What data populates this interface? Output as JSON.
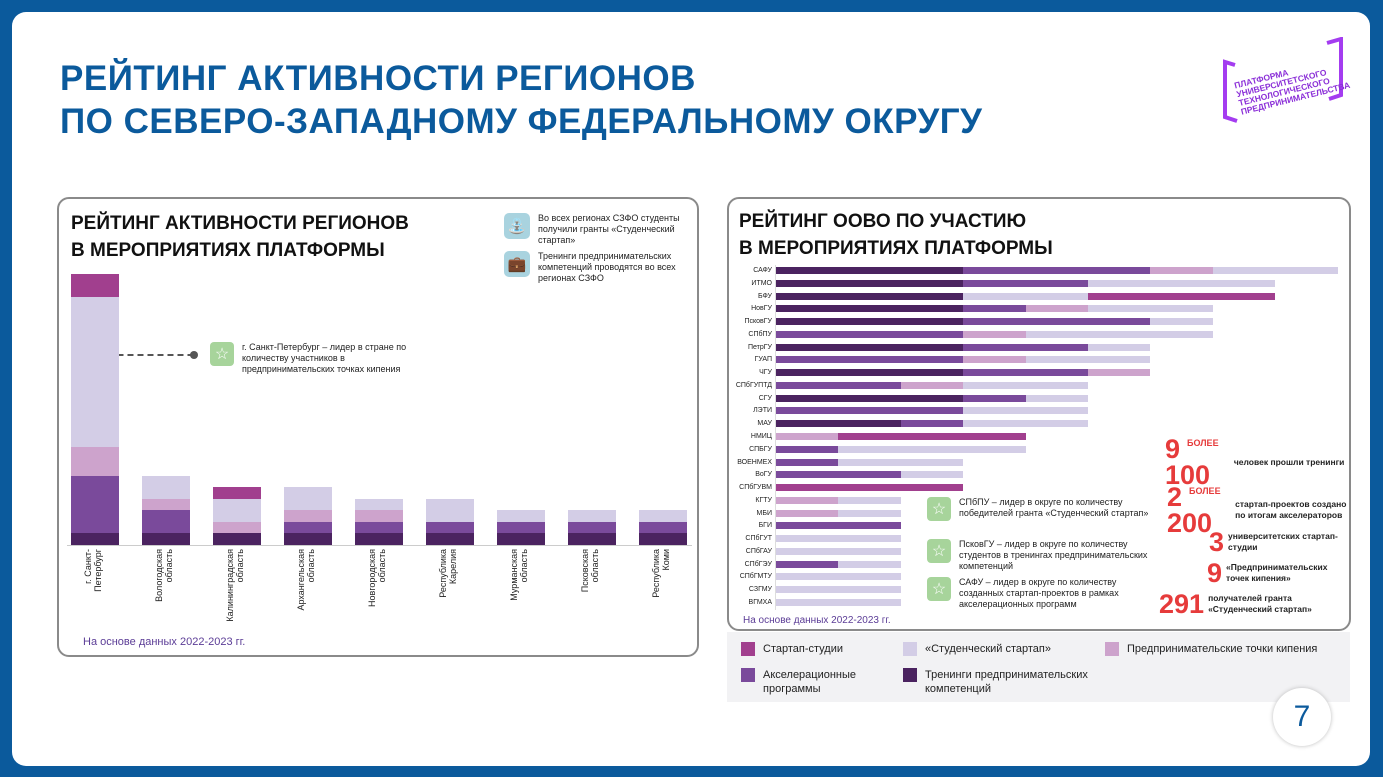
{
  "title": {
    "line1": "РЕЙТИНГ АКТИВНОСТИ РЕГИОНОВ",
    "line2": "ПО СЕВЕРО-ЗАПАДНОМУ ФЕДЕРАЛЬНОМУ ОКРУГУ"
  },
  "logo_text": "ПЛАТФОРМА УНИВЕРСИТЕТСКОГО ТЕХНОЛОГИЧЕСКОГО ПРЕДПРИНИМАТЕЛЬСТВА",
  "colors": {
    "studios": "#a13f8e",
    "startup": "#d3cde6",
    "points": "#cda3cc",
    "accel": "#7a4a9b",
    "trainings": "#4b2360"
  },
  "legend": [
    {
      "key": "studios",
      "label": "Стартап-студии"
    },
    {
      "key": "startup",
      "label": "«Студенческий стартап»"
    },
    {
      "key": "points",
      "label": "Предпринимательские точки кипения"
    },
    {
      "key": "accel",
      "label": "Акселерационные программы"
    },
    {
      "key": "trainings",
      "label": "Тренинги предпринимательских компетенций"
    }
  ],
  "left": {
    "title1": "РЕЙТИНГ АКТИВНОСТИ РЕГИОНОВ",
    "title2": "В МЕРОПРИЯТИЯХ ПЛАТФОРМЫ",
    "info1": "Во всех регионах СЗФО студенты получили гранты «Студенческий стартап»",
    "info2": "Тренинги предпринимательских компетенций проводятся во всех регионах СЗФО",
    "callout": "г. Санкт-Петербург – лидер в стране по количеству участников в предпринимательских точках кипения",
    "note": "На основе данных 2022-2023 гг."
  },
  "right": {
    "title1": "РЕЙТИНГ ООВО ПО УЧАСТИЮ",
    "title2": "В МЕРОПРИЯТИЯХ ПЛАТФОРМЫ",
    "note": "На основе данных 2022-2023 гг.",
    "callouts": [
      "СПбПУ – лидер в округе по количеству победителей гранта «Студенческий стартап»",
      "ПсковГУ – лидер в округе по количеству студентов в тренингах предпринимательских компетенций",
      "САФУ – лидер в округе по количеству созданных стартап-проектов в рамках акселерационных программ"
    ],
    "stats": [
      {
        "pre": "БОЛЕЕ",
        "num": "9 100",
        "text": "человек прошли тренинги"
      },
      {
        "pre": "БОЛЕЕ",
        "num": "2 200",
        "text": "стартап-проектов создано по итогам акселераторов"
      },
      {
        "pre": "",
        "num": "3",
        "text": "университетских стартап-студии"
      },
      {
        "pre": "",
        "num": "9",
        "text": "«Предпринимательских точек кипения»"
      },
      {
        "pre": "",
        "num": "291",
        "text": "получателей гранта «Студенческий стартап»"
      }
    ]
  },
  "page_number": "7",
  "chart_data": [
    {
      "type": "bar",
      "stacked": true,
      "orientation": "vertical",
      "title": "РЕЙТИНГ АКТИВНОСТИ РЕГИОНОВ В МЕРОПРИЯТИЯХ ПЛАТФОРМЫ",
      "units": "relative",
      "categories": [
        "г. Санкт-\nПетербург",
        "Вологодская\nобласть",
        "Калининградская\nобласть",
        "Архангельская\nобласть",
        "Новгородская\nобласть",
        "Республика\nКарелия",
        "Мурманская\nобласть",
        "Псковская\nобласть",
        "Республика\nКоми"
      ],
      "bars": [
        [
          [
            "trainings",
            1
          ],
          [
            "accel",
            5
          ],
          [
            "points",
            2.5
          ],
          [
            "startup",
            13
          ],
          [
            "studios",
            2
          ]
        ],
        [
          [
            "trainings",
            1
          ],
          [
            "accel",
            2
          ],
          [
            "points",
            1
          ],
          [
            "startup",
            2
          ]
        ],
        [
          [
            "trainings",
            1
          ],
          [
            "points",
            1
          ],
          [
            "startup",
            2
          ],
          [
            "studios",
            1
          ]
        ],
        [
          [
            "trainings",
            1
          ],
          [
            "accel",
            1
          ],
          [
            "points",
            1
          ],
          [
            "startup",
            2
          ]
        ],
        [
          [
            "trainings",
            1
          ],
          [
            "accel",
            1
          ],
          [
            "points",
            1
          ],
          [
            "startup",
            1
          ]
        ],
        [
          [
            "trainings",
            1
          ],
          [
            "accel",
            1
          ],
          [
            "startup",
            2
          ]
        ],
        [
          [
            "trainings",
            1
          ],
          [
            "accel",
            1
          ],
          [
            "startup",
            1
          ]
        ],
        [
          [
            "trainings",
            1
          ],
          [
            "accel",
            1
          ],
          [
            "startup",
            1
          ]
        ],
        [
          [
            "trainings",
            1
          ],
          [
            "accel",
            1
          ],
          [
            "startup",
            1
          ]
        ]
      ]
    },
    {
      "type": "bar",
      "stacked": true,
      "orientation": "horizontal",
      "title": "РЕЙТИНГ ООВО ПО УЧАСТИЮ В МЕРОПРИЯТИЯХ ПЛАТФОРМЫ",
      "units": "relative",
      "categories": [
        "САФУ",
        "ИТМО",
        "БФУ",
        "НовГУ",
        "ПсковГУ",
        "СПбПУ",
        "ПетрГУ",
        "ГУАП",
        "ЧГУ",
        "СПбГУПТД",
        "СГУ",
        "ЛЭТИ",
        "МАУ",
        "НМИЦ",
        "СПБГУ",
        "ВОЕНМЕХ",
        "ВоГУ",
        "СПбГУВМ",
        "КГТУ",
        "МБИ",
        "БГИ",
        "СПбГУТ",
        "СПбГАУ",
        "СПбГЭУ",
        "СПбГМТУ",
        "СЗГМУ",
        "ВГМХА"
      ],
      "bars": [
        [
          [
            "trainings",
            3
          ],
          [
            "accel",
            3
          ],
          [
            "points",
            1
          ],
          [
            "startup",
            2
          ]
        ],
        [
          [
            "trainings",
            3
          ],
          [
            "accel",
            2
          ],
          [
            "startup",
            3
          ]
        ],
        [
          [
            "trainings",
            3
          ],
          [
            "startup",
            2
          ],
          [
            "studios",
            3
          ]
        ],
        [
          [
            "trainings",
            3
          ],
          [
            "accel",
            1
          ],
          [
            "points",
            1
          ],
          [
            "startup",
            2
          ]
        ],
        [
          [
            "trainings",
            3
          ],
          [
            "accel",
            3
          ],
          [
            "startup",
            1
          ]
        ],
        [
          [
            "accel",
            3
          ],
          [
            "points",
            1
          ],
          [
            "startup",
            3
          ]
        ],
        [
          [
            "trainings",
            3
          ],
          [
            "accel",
            2
          ],
          [
            "startup",
            1
          ]
        ],
        [
          [
            "accel",
            3
          ],
          [
            "points",
            1
          ],
          [
            "startup",
            2
          ]
        ],
        [
          [
            "trainings",
            3
          ],
          [
            "accel",
            2
          ],
          [
            "points",
            1
          ]
        ],
        [
          [
            "accel",
            2
          ],
          [
            "points",
            1
          ],
          [
            "startup",
            2
          ]
        ],
        [
          [
            "trainings",
            3
          ],
          [
            "accel",
            1
          ],
          [
            "startup",
            1
          ]
        ],
        [
          [
            "accel",
            3
          ],
          [
            "startup",
            2
          ]
        ],
        [
          [
            "trainings",
            2
          ],
          [
            "accel",
            1
          ],
          [
            "startup",
            2
          ]
        ],
        [
          [
            "points",
            1
          ],
          [
            "studios",
            3
          ]
        ],
        [
          [
            "accel",
            1
          ],
          [
            "startup",
            3
          ]
        ],
        [
          [
            "accel",
            1
          ],
          [
            "startup",
            2
          ]
        ],
        [
          [
            "accel",
            2
          ],
          [
            "startup",
            1
          ]
        ],
        [
          [
            "studios",
            3
          ]
        ],
        [
          [
            "points",
            1
          ],
          [
            "startup",
            1
          ]
        ],
        [
          [
            "points",
            1
          ],
          [
            "startup",
            1
          ]
        ],
        [
          [
            "accel",
            2
          ]
        ],
        [
          [
            "startup",
            2
          ]
        ],
        [
          [
            "startup",
            2
          ]
        ],
        [
          [
            "accel",
            1
          ],
          [
            "startup",
            1
          ]
        ],
        [
          [
            "startup",
            2
          ]
        ],
        [
          [
            "startup",
            2
          ]
        ],
        [
          [
            "startup",
            2
          ]
        ]
      ]
    }
  ]
}
